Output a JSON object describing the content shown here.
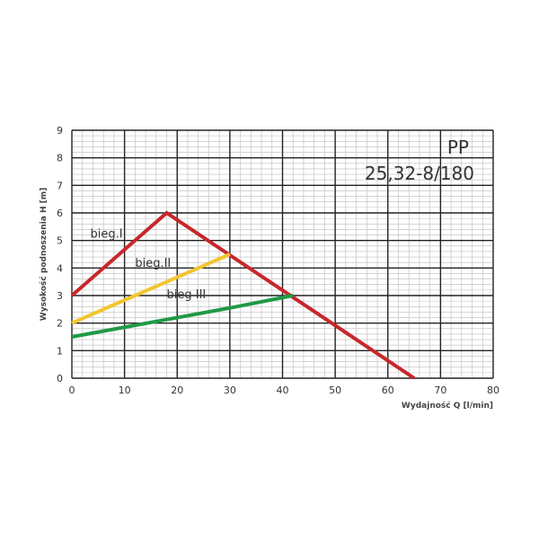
{
  "chart_data": {
    "type": "line",
    "title": "PP",
    "subtitle": "25,32-8/180",
    "xlabel": "Wydajność Q [l/min]",
    "ylabel": "Wysokość podnoszenia H [m]",
    "xlim": [
      0,
      80
    ],
    "ylim": [
      0,
      9
    ],
    "xticks": [
      "0",
      "10",
      "20",
      "30",
      "40",
      "50",
      "60",
      "70",
      "80"
    ],
    "yticks": [
      "0",
      "1",
      "2",
      "3",
      "4",
      "5",
      "6",
      "7",
      "8",
      "9"
    ],
    "grid": true,
    "series": [
      {
        "name": "bieg.I",
        "color": "#c8262b",
        "x": [
          0,
          18,
          65
        ],
        "y": [
          3,
          6,
          0
        ]
      },
      {
        "name": "bieg.II",
        "color": "#f2c530",
        "x": [
          0,
          30
        ],
        "y": [
          2,
          4.5
        ]
      },
      {
        "name": "bieg III",
        "color": "#1f9a45",
        "x": [
          0,
          10,
          20,
          30,
          42
        ],
        "y": [
          1.5,
          1.85,
          2.2,
          2.55,
          3
        ]
      }
    ],
    "label_positions_data": [
      [
        3.5,
        5.1
      ],
      [
        12,
        4.05
      ],
      [
        18,
        2.9
      ]
    ]
  }
}
